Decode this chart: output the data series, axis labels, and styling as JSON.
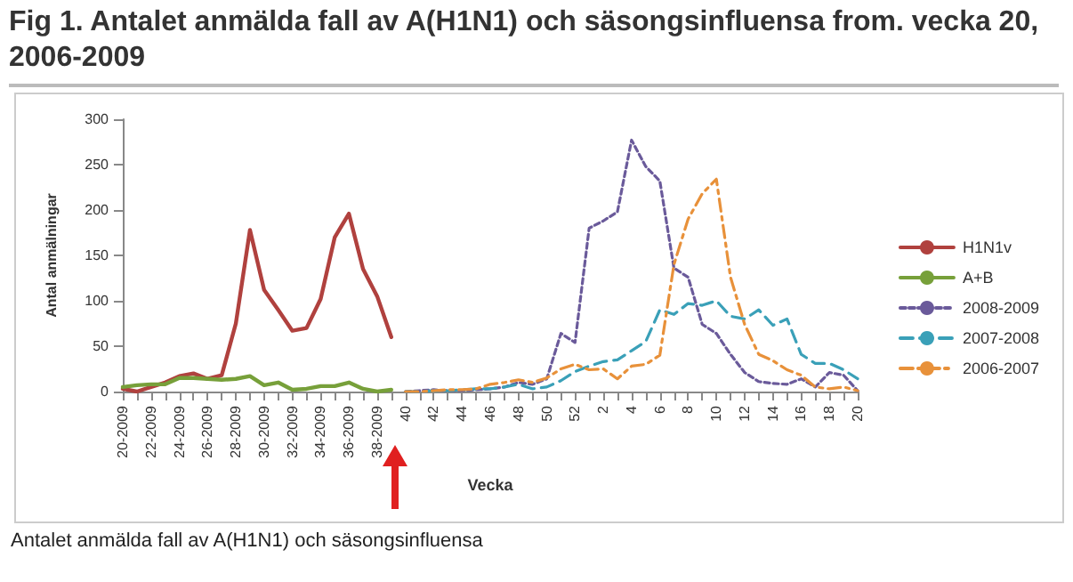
{
  "chart_data": {
    "type": "line",
    "title": "Fig 1. Antalet anmälda fall av A(H1N1) och säsongsinfluensa from. vecka 20, 2006-2009",
    "xlabel": "Vecka",
    "ylabel": "Antal anmälningar",
    "categories": [
      "20-2009",
      null,
      "22-2009",
      null,
      "24-2009",
      null,
      "26-2009",
      null,
      "28-2009",
      null,
      "30-2009",
      null,
      "32-2009",
      null,
      "34-2009",
      null,
      "36-2009",
      null,
      "38-2009",
      null,
      "40",
      null,
      "42",
      null,
      "44",
      null,
      "46",
      null,
      "48",
      null,
      "50",
      null,
      "52",
      null,
      "2",
      null,
      "4",
      null,
      "6",
      null,
      "8",
      null,
      "10",
      null,
      "12",
      null,
      "14",
      null,
      "16",
      null,
      "18",
      null,
      "20"
    ],
    "series": [
      {
        "name": "H1N1v",
        "color": "#b0413e",
        "line_style": "solid",
        "values": [
          3,
          0,
          5,
          10,
          17,
          20,
          14,
          18,
          75,
          178,
          112,
          90,
          67,
          70,
          102,
          170,
          196,
          135,
          105,
          60,
          null,
          null,
          null,
          null,
          null,
          null,
          null,
          null,
          null,
          null,
          null,
          null,
          null,
          null,
          null,
          null,
          null,
          null,
          null,
          null,
          null,
          null,
          null,
          null,
          null,
          null,
          null,
          null,
          null,
          null,
          null,
          null,
          null
        ]
      },
      {
        "name": "A+B",
        "color": "#77a03a",
        "line_style": "solid",
        "values": [
          5,
          7,
          8,
          8,
          15,
          15,
          14,
          13,
          14,
          17,
          7,
          10,
          2,
          3,
          6,
          6,
          10,
          3,
          0,
          2,
          null,
          null,
          null,
          null,
          null,
          null,
          null,
          null,
          null,
          null,
          null,
          null,
          null,
          null,
          null,
          null,
          null,
          null,
          null,
          null,
          null,
          null,
          null,
          null,
          null,
          null,
          null,
          null,
          null,
          null,
          null,
          null,
          null
        ]
      },
      {
        "name": "2008-2009",
        "color": "#6a5a9a",
        "line_style": "dotted",
        "values": [
          null,
          null,
          null,
          null,
          null,
          null,
          null,
          null,
          null,
          null,
          null,
          null,
          null,
          null,
          null,
          null,
          null,
          null,
          null,
          null,
          0,
          1,
          2,
          1,
          1,
          2,
          3,
          5,
          10,
          8,
          14,
          64,
          54,
          180,
          188,
          198,
          277,
          248,
          232,
          136,
          126,
          74,
          64,
          41,
          21,
          11,
          9,
          8,
          14,
          5,
          21,
          18,
          1
        ]
      },
      {
        "name": "2007-2008",
        "color": "#3aa0b8",
        "line_style": "dashed",
        "values": [
          null,
          null,
          null,
          null,
          null,
          null,
          null,
          null,
          null,
          null,
          null,
          null,
          null,
          null,
          null,
          null,
          null,
          null,
          null,
          null,
          0,
          0,
          1,
          1,
          2,
          3,
          3,
          5,
          8,
          3,
          5,
          12,
          22,
          28,
          33,
          35,
          45,
          55,
          90,
          85,
          97,
          95,
          100,
          83,
          80,
          90,
          73,
          80,
          41,
          31,
          31,
          24,
          14
        ]
      },
      {
        "name": "2006-2007",
        "color": "#e8913a",
        "line_style": "dashdot",
        "values": [
          null,
          null,
          null,
          null,
          null,
          null,
          null,
          null,
          null,
          null,
          null,
          null,
          null,
          null,
          null,
          null,
          null,
          null,
          null,
          null,
          0,
          0,
          1,
          2,
          2,
          3,
          8,
          10,
          13,
          10,
          15,
          25,
          30,
          24,
          25,
          14,
          28,
          30,
          40,
          140,
          190,
          218,
          234,
          126,
          74,
          41,
          34,
          24,
          18,
          5,
          3,
          5,
          1
        ]
      }
    ],
    "ylim": [
      0,
      300
    ],
    "yticks": [
      0,
      50,
      100,
      150,
      200,
      250,
      300
    ],
    "grid": false,
    "legend": "right",
    "marker": "none",
    "annotations": [
      "Antalet anmälda fall av A(H1N1) och säsongsinfluensa"
    ]
  }
}
